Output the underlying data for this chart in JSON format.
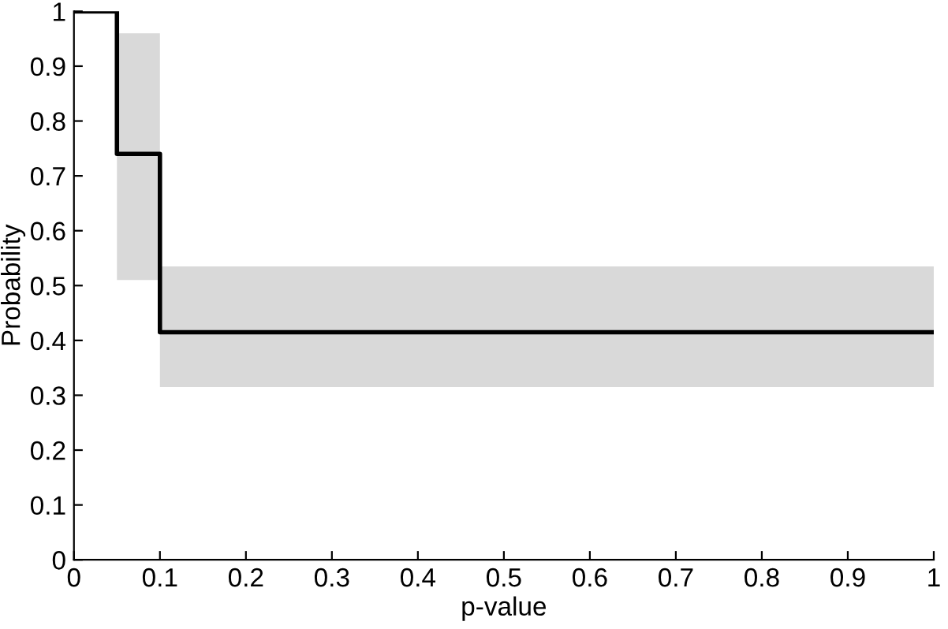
{
  "chart_data": {
    "type": "step",
    "xlabel": "p-value",
    "ylabel": "Probability",
    "x": [
      0,
      0.05,
      0.1,
      1
    ],
    "series": [
      {
        "color": "#000000",
        "values": [
          1,
          0.74,
          0.415,
          0.415
        ],
        "lower": [
          null,
          0.51,
          0.315,
          0.315
        ],
        "upper": [
          null,
          0.96,
          0.535,
          0.535
        ]
      }
    ],
    "xlim": [
      0,
      1
    ],
    "ylim": [
      0,
      1
    ],
    "xticks": [
      0,
      0.1,
      0.2,
      0.3,
      0.4,
      0.5,
      0.6,
      0.7,
      0.8,
      0.9,
      1
    ],
    "yticks": [
      0,
      0.1,
      0.2,
      0.3,
      0.4,
      0.5,
      0.6,
      0.7,
      0.8,
      0.9,
      1
    ],
    "grid": false,
    "legend": false
  }
}
